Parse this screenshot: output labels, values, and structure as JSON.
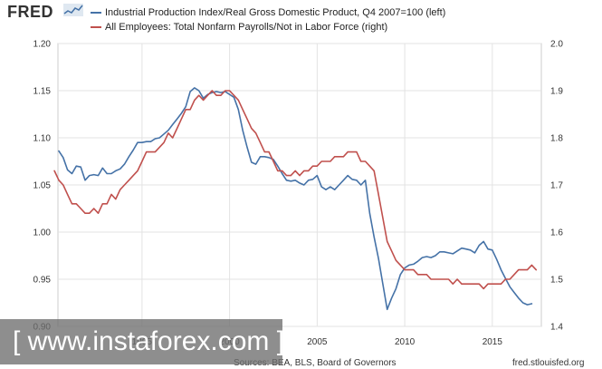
{
  "header": {
    "logo": "FRED",
    "legend": [
      {
        "label": "Industrial Production Index/Real Gross Domestic Product, Q4 2007=100 (left)",
        "color": "#4572a7"
      },
      {
        "label": "All Employees: Total Nonfarm Payrolls/Not in Labor Force (right)",
        "color": "#c0504d"
      }
    ]
  },
  "footer": {
    "source": "Sources: BEA, BLS, Board of Governors",
    "url": "fred.stlouisfed.org"
  },
  "watermark": {
    "text": "[ www.instaforex.com ]"
  },
  "chart_data": {
    "type": "line",
    "title": "",
    "x_ticks": [
      {
        "label": "1995",
        "value": 1995
      },
      {
        "label": "2000",
        "value": 2000
      },
      {
        "label": "2005",
        "value": 2005
      },
      {
        "label": "2010",
        "value": 2010
      },
      {
        "label": "2015",
        "value": 2015
      }
    ],
    "xlim": [
      1990.2,
      2017.8
    ],
    "left_axis": {
      "ticks": [
        "0.90",
        "0.95",
        "1.00",
        "1.05",
        "1.10",
        "1.15",
        "1.20"
      ],
      "ylim": [
        0.9,
        1.2
      ]
    },
    "right_axis": {
      "ticks": [
        "1.4",
        "1.5",
        "1.6",
        "1.7",
        "1.8",
        "1.9",
        "2.0"
      ],
      "ylim": [
        1.4,
        2.0
      ]
    },
    "grid": true,
    "series": [
      {
        "name": "Industrial Production Index/Real Gross Domestic Product, Q4 2007=100 (left)",
        "axis": "left",
        "color": "#4572a7",
        "x": [
          1990.25,
          1990.5,
          1990.75,
          1991.0,
          1991.25,
          1991.5,
          1991.75,
          1992.0,
          1992.25,
          1992.5,
          1992.75,
          1993.0,
          1993.25,
          1993.5,
          1993.75,
          1994.0,
          1994.25,
          1994.5,
          1994.75,
          1995.0,
          1995.25,
          1995.5,
          1995.75,
          1996.0,
          1996.25,
          1996.5,
          1996.75,
          1997.0,
          1997.25,
          1997.5,
          1997.75,
          1998.0,
          1998.25,
          1998.5,
          1998.75,
          1999.0,
          1999.25,
          1999.5,
          1999.75,
          2000.0,
          2000.25,
          2000.5,
          2000.75,
          2001.0,
          2001.25,
          2001.5,
          2001.75,
          2002.0,
          2002.25,
          2002.5,
          2002.75,
          2003.0,
          2003.25,
          2003.5,
          2003.75,
          2004.0,
          2004.25,
          2004.5,
          2004.75,
          2005.0,
          2005.25,
          2005.5,
          2005.75,
          2006.0,
          2006.25,
          2006.5,
          2006.75,
          2007.0,
          2007.25,
          2007.5,
          2007.75,
          2008.0,
          2008.25,
          2008.5,
          2008.75,
          2009.0,
          2009.25,
          2009.5,
          2009.75,
          2010.0,
          2010.25,
          2010.5,
          2010.75,
          2011.0,
          2011.25,
          2011.5,
          2011.75,
          2012.0,
          2012.25,
          2012.5,
          2012.75,
          2013.0,
          2013.25,
          2013.5,
          2013.75,
          2014.0,
          2014.25,
          2014.5,
          2014.75,
          2015.0,
          2015.25,
          2015.5,
          2015.75,
          2016.0,
          2016.25,
          2016.5,
          2016.75,
          2017.0,
          2017.25
        ],
        "y": [
          1.086,
          1.079,
          1.066,
          1.062,
          1.07,
          1.069,
          1.055,
          1.06,
          1.061,
          1.06,
          1.068,
          1.062,
          1.062,
          1.065,
          1.067,
          1.072,
          1.08,
          1.087,
          1.095,
          1.095,
          1.096,
          1.096,
          1.099,
          1.1,
          1.104,
          1.108,
          1.114,
          1.12,
          1.126,
          1.133,
          1.149,
          1.153,
          1.15,
          1.142,
          1.146,
          1.148,
          1.149,
          1.148,
          1.149,
          1.146,
          1.143,
          1.13,
          1.108,
          1.09,
          1.074,
          1.072,
          1.08,
          1.08,
          1.079,
          1.077,
          1.07,
          1.062,
          1.055,
          1.054,
          1.055,
          1.052,
          1.05,
          1.055,
          1.056,
          1.06,
          1.048,
          1.045,
          1.048,
          1.045,
          1.05,
          1.055,
          1.06,
          1.056,
          1.055,
          1.05,
          1.055,
          1.02,
          0.995,
          0.972,
          0.945,
          0.918,
          0.93,
          0.94,
          0.955,
          0.962,
          0.965,
          0.966,
          0.969,
          0.973,
          0.974,
          0.973,
          0.975,
          0.979,
          0.979,
          0.978,
          0.977,
          0.98,
          0.983,
          0.982,
          0.981,
          0.978,
          0.986,
          0.99,
          0.982,
          0.981,
          0.971,
          0.96,
          0.951,
          0.942,
          0.936,
          0.93,
          0.925,
          0.923,
          0.924
        ]
      },
      {
        "name": "All Employees: Total Nonfarm Payrolls/Not in Labor Force (right)",
        "axis": "right",
        "color": "#c0504d",
        "x": [
          1990.0,
          1990.25,
          1990.5,
          1990.75,
          1991.0,
          1991.25,
          1991.5,
          1991.75,
          1992.0,
          1992.25,
          1992.5,
          1992.75,
          1993.0,
          1993.25,
          1993.5,
          1993.75,
          1994.0,
          1994.25,
          1994.5,
          1994.75,
          1995.0,
          1995.25,
          1995.5,
          1995.75,
          1996.0,
          1996.25,
          1996.5,
          1996.75,
          1997.0,
          1997.25,
          1997.5,
          1997.75,
          1998.0,
          1998.25,
          1998.5,
          1998.75,
          1999.0,
          1999.25,
          1999.5,
          1999.75,
          2000.0,
          2000.25,
          2000.5,
          2000.75,
          2001.0,
          2001.25,
          2001.5,
          2001.75,
          2002.0,
          2002.25,
          2002.5,
          2002.75,
          2003.0,
          2003.25,
          2003.5,
          2003.75,
          2004.0,
          2004.25,
          2004.5,
          2004.75,
          2005.0,
          2005.25,
          2005.5,
          2005.75,
          2006.0,
          2006.25,
          2006.5,
          2006.75,
          2007.0,
          2007.25,
          2007.5,
          2007.75,
          2008.0,
          2008.25,
          2008.5,
          2008.75,
          2009.0,
          2009.25,
          2009.5,
          2009.75,
          2010.0,
          2010.25,
          2010.5,
          2010.75,
          2011.0,
          2011.25,
          2011.5,
          2011.75,
          2012.0,
          2012.25,
          2012.5,
          2012.75,
          2013.0,
          2013.25,
          2013.5,
          2013.75,
          2014.0,
          2014.25,
          2014.5,
          2014.75,
          2015.0,
          2015.25,
          2015.5,
          2015.75,
          2016.0,
          2016.25,
          2016.5,
          2016.75,
          2017.0,
          2017.25,
          2017.5
        ],
        "y": [
          1.73,
          1.71,
          1.7,
          1.68,
          1.66,
          1.66,
          1.65,
          1.64,
          1.64,
          1.65,
          1.64,
          1.66,
          1.66,
          1.68,
          1.67,
          1.69,
          1.7,
          1.71,
          1.72,
          1.73,
          1.75,
          1.77,
          1.77,
          1.77,
          1.78,
          1.79,
          1.81,
          1.8,
          1.82,
          1.84,
          1.86,
          1.86,
          1.88,
          1.89,
          1.88,
          1.89,
          1.9,
          1.89,
          1.89,
          1.9,
          1.9,
          1.89,
          1.88,
          1.86,
          1.84,
          1.82,
          1.81,
          1.79,
          1.77,
          1.77,
          1.75,
          1.73,
          1.73,
          1.72,
          1.72,
          1.73,
          1.72,
          1.73,
          1.73,
          1.74,
          1.74,
          1.75,
          1.75,
          1.75,
          1.76,
          1.76,
          1.76,
          1.77,
          1.77,
          1.77,
          1.75,
          1.75,
          1.74,
          1.73,
          1.68,
          1.63,
          1.58,
          1.56,
          1.54,
          1.53,
          1.52,
          1.52,
          1.52,
          1.51,
          1.51,
          1.51,
          1.5,
          1.5,
          1.5,
          1.5,
          1.5,
          1.49,
          1.5,
          1.49,
          1.49,
          1.49,
          1.49,
          1.49,
          1.48,
          1.49,
          1.49,
          1.49,
          1.49,
          1.5,
          1.5,
          1.51,
          1.52,
          1.52,
          1.52,
          1.53,
          1.52
        ]
      }
    ]
  }
}
